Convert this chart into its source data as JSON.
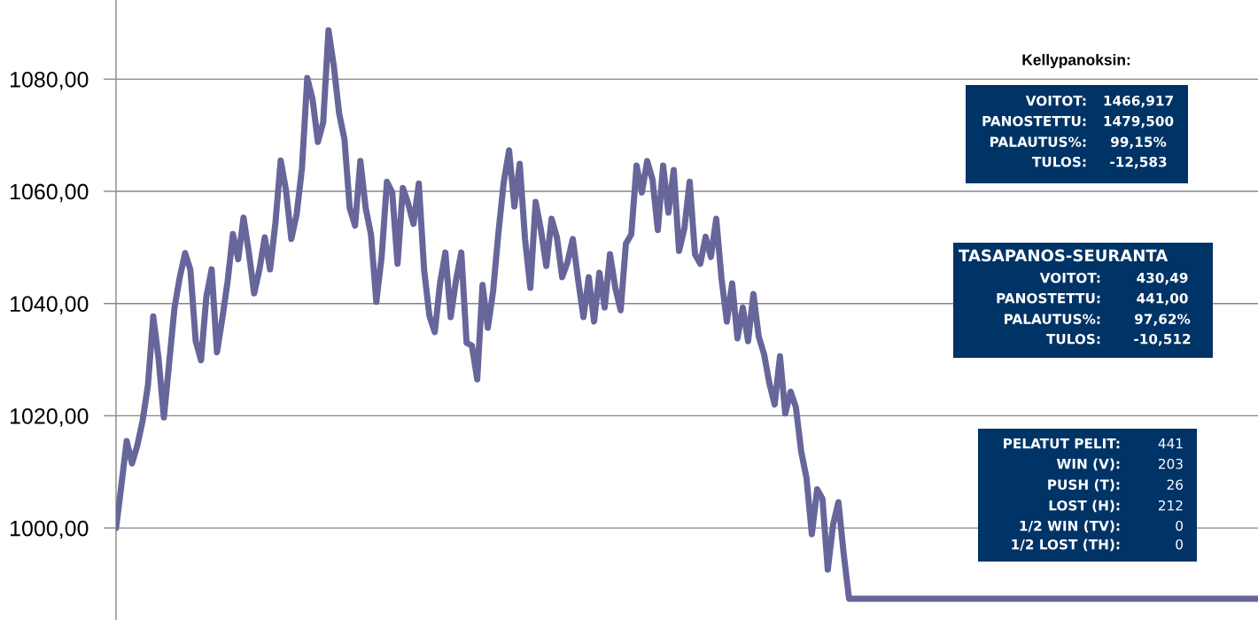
{
  "chart_data": {
    "type": "line",
    "categories": [
      null,
      null,
      null,
      null,
      null,
      null,
      null,
      null,
      null,
      null,
      null,
      null,
      null,
      null,
      null,
      null,
      null,
      null,
      null,
      null,
      null,
      null,
      null,
      null,
      null,
      null,
      null,
      null,
      null,
      null,
      null,
      null,
      null,
      null,
      null,
      null,
      null,
      null,
      null,
      null,
      null,
      null,
      null,
      null,
      null,
      null,
      null,
      null,
      null,
      null,
      null,
      null,
      null,
      null,
      null,
      null,
      null,
      null,
      null,
      null,
      null,
      null,
      null,
      null,
      null,
      null,
      null,
      null,
      null,
      null,
      null,
      null,
      null,
      null,
      null,
      null,
      null,
      null,
      null,
      null,
      null,
      null,
      null,
      null,
      null,
      null,
      null,
      null,
      null,
      null,
      null,
      null,
      null,
      null,
      null,
      null,
      null,
      null,
      null,
      null,
      null,
      null,
      null,
      null,
      null,
      null,
      null,
      null,
      null,
      null,
      null,
      null,
      null,
      null,
      null,
      null,
      null,
      null,
      null,
      null,
      null,
      null,
      null,
      null,
      null,
      null,
      null,
      null,
      null,
      null,
      null,
      null,
      null,
      null,
      null,
      null,
      null,
      null,
      null,
      null,
      null,
      null,
      null,
      null,
      null,
      null,
      null,
      null,
      null,
      null,
      null,
      null,
      null,
      null,
      null,
      null,
      null,
      null,
      null,
      null,
      null,
      null,
      null,
      null,
      null,
      null,
      null,
      null,
      null,
      null,
      null,
      null,
      null,
      null,
      null,
      null,
      null,
      null,
      null,
      null,
      null,
      null,
      null,
      null,
      null,
      null,
      null,
      null,
      null,
      null,
      null,
      null,
      null,
      null,
      null,
      null,
      null,
      null,
      null,
      null,
      null,
      null,
      null,
      null,
      null,
      null,
      null,
      null,
      null,
      null,
      null,
      null,
      null,
      null,
      null,
      null
    ],
    "values": [
      1000.0,
      1007.6,
      1015.5,
      1011.5,
      1014.7,
      1019.1,
      1025.4,
      1037.7,
      1030.2,
      1019.7,
      1029.4,
      1039.2,
      1044.7,
      1049.0,
      1046.0,
      1033.3,
      1029.9,
      1041.2,
      1046.1,
      1031.3,
      1037.3,
      1043.9,
      1052.4,
      1047.9,
      1055.3,
      1049.1,
      1041.8,
      1046.1,
      1051.8,
      1046.1,
      1054.3,
      1065.5,
      1060.2,
      1051.5,
      1055.9,
      1064.1,
      1080.2,
      1076.4,
      1068.8,
      1072.3,
      1088.7,
      1082.3,
      1073.9,
      1069.3,
      1057.0,
      1053.9,
      1065.4,
      1057.0,
      1052.3,
      1040.3,
      1048.3,
      1061.7,
      1059.8,
      1047.1,
      1060.6,
      1057.8,
      1054.2,
      1061.4,
      1046.0,
      1037.8,
      1034.9,
      1043.6,
      1049.1,
      1037.6,
      1044.1,
      1049.1,
      1033.0,
      1032.5,
      1026.5,
      1043.3,
      1035.7,
      1042.3,
      1052.7,
      1061.7,
      1067.3,
      1057.3,
      1064.9,
      1051.5,
      1042.8,
      1058.1,
      1053.1,
      1046.7,
      1055.1,
      1051.8,
      1044.7,
      1047.4,
      1051.5,
      1044.2,
      1037.6,
      1044.7,
      1036.8,
      1045.5,
      1039.3,
      1048.8,
      1042.8,
      1038.8,
      1050.7,
      1052.3,
      1064.6,
      1059.8,
      1065.4,
      1062.1,
      1053.1,
      1064.6,
      1056.2,
      1063.8,
      1049.4,
      1053.4,
      1061.7,
      1048.8,
      1047.1,
      1051.9,
      1048.3,
      1055.1,
      1044.4,
      1036.8,
      1043.6,
      1033.8,
      1039.3,
      1033.3,
      1041.7,
      1034.1,
      1031.0,
      1025.8,
      1022.0,
      1030.6,
      1020.4,
      1024.3,
      1021.5,
      1013.6,
      1008.9,
      998.9,
      1006.9,
      1005.2,
      992.6,
      1000.6,
      1004.6,
      995.4,
      987.4,
      987.4,
      987.4,
      987.4,
      987.4,
      987.4,
      987.4,
      987.4,
      987.4,
      987.4,
      987.4,
      987.4,
      987.4,
      987.4,
      987.4,
      987.4,
      987.4,
      987.4,
      987.4,
      987.4,
      987.4,
      987.4,
      987.4,
      987.4,
      987.4,
      987.4,
      987.4,
      987.4,
      987.4,
      987.4,
      987.4,
      987.4,
      987.4,
      987.4,
      987.4,
      987.4,
      987.4,
      987.4,
      987.4,
      987.4,
      987.4,
      987.4,
      987.4,
      987.4,
      987.4,
      987.4,
      987.4,
      987.4,
      987.4,
      987.4,
      987.4,
      987.4,
      987.4,
      987.4,
      987.4,
      987.4,
      987.4,
      987.4,
      987.4,
      987.4,
      987.4,
      987.4,
      987.4,
      987.4,
      987.4,
      987.4,
      987.4,
      987.4,
      987.4,
      987.4,
      987.4,
      987.4,
      987.4,
      987.4,
      987.4,
      987.4,
      987.4,
      987.4
    ],
    "color": "#66669a",
    "ylim": [
      983.6,
      1094.1
    ],
    "yticks": [
      {
        "value": 1000,
        "label": "1000,00"
      },
      {
        "value": 1020,
        "label": "1020,00"
      },
      {
        "value": 1040,
        "label": "1040,00"
      },
      {
        "value": 1060,
        "label": "1060,00"
      },
      {
        "value": 1080,
        "label": "1080,00"
      }
    ],
    "grid": "y",
    "annotations": [
      "Kellypanoksin:",
      "VOITOT:",
      "1466,917",
      "PANOSTETTU:",
      "1479,500",
      "PALAUTUS%:",
      "99,15%",
      "TULOS:",
      "-12,583",
      "TASAPANOS-SEURANTA",
      "VOITOT:",
      "430,49",
      "PANOSTETTU:",
      "441,00",
      "PALAUTUS%:",
      "97,62%",
      "TULOS:",
      "-10,512",
      "PELATUT PELIT:",
      "441",
      "WIN (V):",
      "203",
      "PUSH (T):",
      "26",
      "LOST (H):",
      "212",
      "1/2 WIN (TV):",
      "0",
      "1/2 LOST (TH):",
      "0"
    ]
  }
}
